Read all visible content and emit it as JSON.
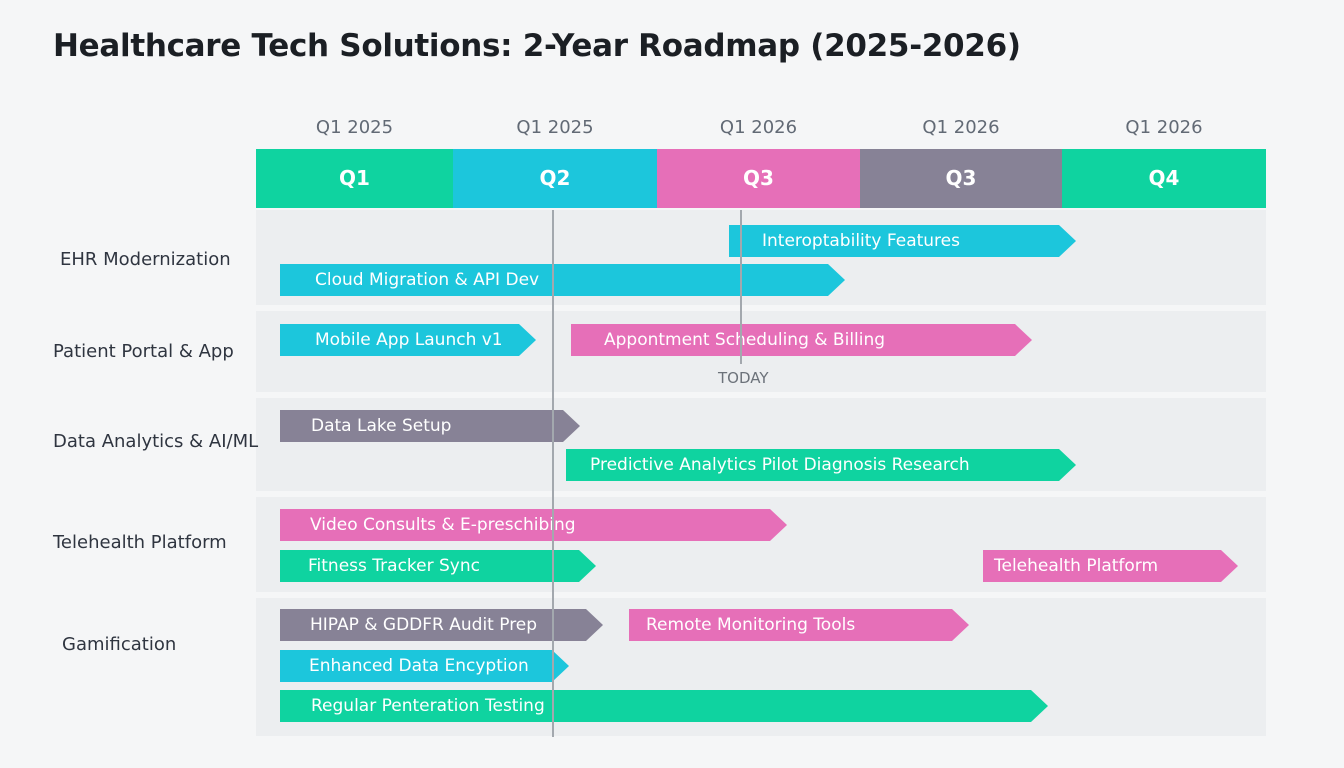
{
  "title": "Healthcare Tech Solutions: 2-Year Roadmap (2025-2026)",
  "colors": {
    "teal": "#0fd3a0",
    "cyan": "#1cc6dc",
    "pink": "#e66fb8",
    "gray": "#878296",
    "band": "#eceef0"
  },
  "quarter_labels": [
    "Q1 2025",
    "Q1 2025",
    "Q1 2026",
    "Q1 2026",
    "Q1 2026"
  ],
  "quarters": [
    "Q1",
    "Q2",
    "Q3",
    "Q3",
    "Q4"
  ],
  "rows": [
    "EHR Modernization",
    "Patient Portal & App",
    "Data Analytics & AI/ML",
    "Telehealth Platform",
    "Gamification"
  ],
  "bars": {
    "interop": "Interoptability Features",
    "cloud": "Cloud Migration & API Dev",
    "mobile": "Mobile App Launch v1",
    "scheduling": "Appontment Scheduling & Billing",
    "datalake": "Data Lake Setup",
    "predictive": "Predictive Analytics Pilot Diagnosis Research",
    "video": "Video Consults & E-preschibing",
    "fitness": "Fitness Tracker Sync",
    "telehealth": "Telehealth Platform",
    "hipaa": "HIPAP & GDDFR Audit Prep",
    "remote": "Remote Monitoring Tools",
    "encryption": "Enhanced Data Encyption",
    "pentest": "Regular Penteration Testing"
  },
  "today_label": "TODAY"
}
